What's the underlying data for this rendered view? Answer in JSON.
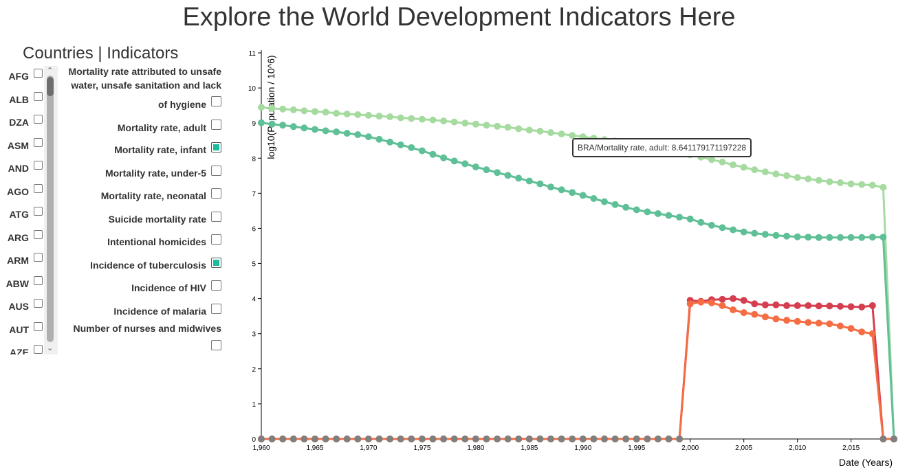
{
  "page_title": "Explore the World Development Indicators Here",
  "panel_header": "Countries | Indicators",
  "countries": [
    {
      "code": "AFG",
      "checked": false
    },
    {
      "code": "ALB",
      "checked": false
    },
    {
      "code": "DZA",
      "checked": false
    },
    {
      "code": "ASM",
      "checked": false
    },
    {
      "code": "AND",
      "checked": false
    },
    {
      "code": "AGO",
      "checked": false
    },
    {
      "code": "ATG",
      "checked": false
    },
    {
      "code": "ARG",
      "checked": false
    },
    {
      "code": "ARM",
      "checked": false
    },
    {
      "code": "ABW",
      "checked": false
    },
    {
      "code": "AUS",
      "checked": false
    },
    {
      "code": "AUT",
      "checked": false
    },
    {
      "code": "AZE",
      "checked": false
    }
  ],
  "scrollbar": {
    "up": "⌃",
    "down": "⌄"
  },
  "indicators": [
    {
      "label_lines": [
        "Mortality rate attributed to unsafe",
        "water, unsafe sanitation and lack",
        "of hygiene"
      ],
      "checked": false
    },
    {
      "label_lines": [
        "Mortality rate, adult"
      ],
      "checked": false
    },
    {
      "label_lines": [
        "Mortality rate, infant"
      ],
      "checked": true
    },
    {
      "label_lines": [
        "Mortality rate, under-5"
      ],
      "checked": false
    },
    {
      "label_lines": [
        "Mortality rate, neonatal"
      ],
      "checked": false
    },
    {
      "label_lines": [
        "Suicide mortality rate"
      ],
      "checked": false
    },
    {
      "label_lines": [
        "Intentional homicides"
      ],
      "checked": false
    },
    {
      "label_lines": [
        "Incidence of tuberculosis"
      ],
      "checked": true
    },
    {
      "label_lines": [
        "Incidence of HIV"
      ],
      "checked": false
    },
    {
      "label_lines": [
        "Incidence of malaria"
      ],
      "checked": false
    },
    {
      "label_lines": [
        "Number of nurses and midwives"
      ],
      "checked": false
    }
  ],
  "tooltip": "BRA/Mortality rate, adult: 8.641179171197228",
  "chart_data": {
    "type": "line",
    "xlabel": "Date (Years)",
    "ylabel": "log10(Population / 10^6)",
    "xlim": [
      1960,
      2019
    ],
    "ylim": [
      0,
      11
    ],
    "x_ticks": [
      1960,
      1965,
      1970,
      1975,
      1980,
      1985,
      1990,
      1995,
      2000,
      2005,
      2010,
      2015
    ],
    "x_tick_labels": [
      "1,960",
      "1,965",
      "1,970",
      "1,975",
      "1,980",
      "1,985",
      "1,990",
      "1,995",
      "2,000",
      "2,005",
      "2,010",
      "2,015"
    ],
    "y_ticks": [
      0,
      1,
      2,
      3,
      4,
      5,
      6,
      7,
      8,
      9,
      10,
      11
    ],
    "y_tick_labels": [
      "0",
      "1",
      "2",
      "3",
      "4",
      "5",
      "6",
      "7",
      "8",
      "9",
      "10",
      "11"
    ],
    "grid": false,
    "legend": "none",
    "x_start": 1960,
    "x_end": 2019,
    "series": [
      {
        "color": "#a6dba0",
        "points": [
          [
            1960,
            9.45
          ],
          [
            1961,
            9.42
          ],
          [
            1962,
            9.4
          ],
          [
            1963,
            9.38
          ],
          [
            1964,
            9.35
          ],
          [
            1965,
            9.33
          ],
          [
            1966,
            9.31
          ],
          [
            1967,
            9.28
          ],
          [
            1968,
            9.26
          ],
          [
            1969,
            9.24
          ],
          [
            1970,
            9.22
          ],
          [
            1971,
            9.2
          ],
          [
            1972,
            9.18
          ],
          [
            1973,
            9.15
          ],
          [
            1974,
            9.13
          ],
          [
            1975,
            9.11
          ],
          [
            1976,
            9.09
          ],
          [
            1977,
            9.06
          ],
          [
            1978,
            9.03
          ],
          [
            1979,
            9.0
          ],
          [
            1980,
            8.97
          ],
          [
            1981,
            8.94
          ],
          [
            1982,
            8.91
          ],
          [
            1983,
            8.88
          ],
          [
            1984,
            8.84
          ],
          [
            1985,
            8.8
          ],
          [
            1986,
            8.77
          ],
          [
            1987,
            8.73
          ],
          [
            1988,
            8.69
          ],
          [
            1989,
            8.65
          ],
          [
            1990,
            8.61
          ],
          [
            1991,
            8.57
          ],
          [
            1992,
            8.53
          ],
          [
            1993,
            8.49
          ],
          [
            1994,
            8.44
          ],
          [
            1995,
            8.39
          ],
          [
            1996,
            8.34
          ],
          [
            1997,
            8.29
          ],
          [
            1998,
            8.23
          ],
          [
            1999,
            8.17
          ],
          [
            2000,
            8.1
          ],
          [
            2001,
            8.03
          ],
          [
            2002,
            7.96
          ],
          [
            2003,
            7.89
          ],
          [
            2004,
            7.81
          ],
          [
            2005,
            7.74
          ],
          [
            2006,
            7.67
          ],
          [
            2007,
            7.61
          ],
          [
            2008,
            7.55
          ],
          [
            2009,
            7.5
          ],
          [
            2010,
            7.45
          ],
          [
            2011,
            7.41
          ],
          [
            2012,
            7.37
          ],
          [
            2013,
            7.33
          ],
          [
            2014,
            7.3
          ],
          [
            2015,
            7.27
          ],
          [
            2016,
            7.25
          ],
          [
            2017,
            7.23
          ],
          [
            2018,
            7.17
          ],
          [
            2019,
            0
          ]
        ]
      },
      {
        "color": "#5fbf97",
        "points": [
          [
            1960,
            9.01
          ],
          [
            1961,
            8.97
          ],
          [
            1962,
            8.94
          ],
          [
            1963,
            8.9
          ],
          [
            1964,
            8.86
          ],
          [
            1965,
            8.82
          ],
          [
            1966,
            8.78
          ],
          [
            1967,
            8.75
          ],
          [
            1968,
            8.71
          ],
          [
            1969,
            8.67
          ],
          [
            1970,
            8.61
          ],
          [
            1971,
            8.54
          ],
          [
            1972,
            8.46
          ],
          [
            1973,
            8.38
          ],
          [
            1974,
            8.3
          ],
          [
            1975,
            8.21
          ],
          [
            1976,
            8.11
          ],
          [
            1977,
            8.01
          ],
          [
            1978,
            7.92
          ],
          [
            1979,
            7.84
          ],
          [
            1980,
            7.75
          ],
          [
            1981,
            7.67
          ],
          [
            1982,
            7.59
          ],
          [
            1983,
            7.51
          ],
          [
            1984,
            7.43
          ],
          [
            1985,
            7.35
          ],
          [
            1986,
            7.27
          ],
          [
            1987,
            7.18
          ],
          [
            1988,
            7.1
          ],
          [
            1989,
            7.02
          ],
          [
            1990,
            6.94
          ],
          [
            1991,
            6.85
          ],
          [
            1992,
            6.76
          ],
          [
            1993,
            6.68
          ],
          [
            1994,
            6.6
          ],
          [
            1995,
            6.53
          ],
          [
            1996,
            6.47
          ],
          [
            1997,
            6.42
          ],
          [
            1998,
            6.37
          ],
          [
            1999,
            6.32
          ],
          [
            2000,
            6.27
          ],
          [
            2001,
            6.17
          ],
          [
            2002,
            6.09
          ],
          [
            2003,
            6.02
          ],
          [
            2004,
            5.96
          ],
          [
            2005,
            5.9
          ],
          [
            2006,
            5.86
          ],
          [
            2007,
            5.83
          ],
          [
            2008,
            5.8
          ],
          [
            2009,
            5.78
          ],
          [
            2010,
            5.76
          ],
          [
            2011,
            5.75
          ],
          [
            2012,
            5.74
          ],
          [
            2013,
            5.74
          ],
          [
            2014,
            5.74
          ],
          [
            2015,
            5.74
          ],
          [
            2016,
            5.74
          ],
          [
            2017,
            5.75
          ],
          [
            2018,
            5.75
          ],
          [
            2019,
            0
          ]
        ]
      },
      {
        "color": "#d53e4f",
        "points": [
          [
            1960,
            0
          ],
          [
            1961,
            0
          ],
          [
            1962,
            0
          ],
          [
            1963,
            0
          ],
          [
            1964,
            0
          ],
          [
            1965,
            0
          ],
          [
            1966,
            0
          ],
          [
            1967,
            0
          ],
          [
            1968,
            0
          ],
          [
            1969,
            0
          ],
          [
            1970,
            0
          ],
          [
            1971,
            0
          ],
          [
            1972,
            0
          ],
          [
            1973,
            0
          ],
          [
            1974,
            0
          ],
          [
            1975,
            0
          ],
          [
            1976,
            0
          ],
          [
            1977,
            0
          ],
          [
            1978,
            0
          ],
          [
            1979,
            0
          ],
          [
            1980,
            0
          ],
          [
            1981,
            0
          ],
          [
            1982,
            0
          ],
          [
            1983,
            0
          ],
          [
            1984,
            0
          ],
          [
            1985,
            0
          ],
          [
            1986,
            0
          ],
          [
            1987,
            0
          ],
          [
            1988,
            0
          ],
          [
            1989,
            0
          ],
          [
            1990,
            0
          ],
          [
            1991,
            0
          ],
          [
            1992,
            0
          ],
          [
            1993,
            0
          ],
          [
            1994,
            0
          ],
          [
            1995,
            0
          ],
          [
            1996,
            0
          ],
          [
            1997,
            0
          ],
          [
            1998,
            0
          ],
          [
            1999,
            0
          ],
          [
            2000,
            3.95
          ],
          [
            2001,
            3.92
          ],
          [
            2002,
            3.97
          ],
          [
            2003,
            3.98
          ],
          [
            2004,
            4.0
          ],
          [
            2005,
            3.95
          ],
          [
            2006,
            3.85
          ],
          [
            2007,
            3.82
          ],
          [
            2008,
            3.82
          ],
          [
            2009,
            3.8
          ],
          [
            2010,
            3.8
          ],
          [
            2011,
            3.8
          ],
          [
            2012,
            3.79
          ],
          [
            2013,
            3.79
          ],
          [
            2014,
            3.78
          ],
          [
            2015,
            3.77
          ],
          [
            2016,
            3.76
          ],
          [
            2017,
            3.8
          ],
          [
            2018,
            0
          ],
          [
            2019,
            0
          ]
        ]
      },
      {
        "color": "#f46d43",
        "points": [
          [
            1960,
            0
          ],
          [
            1961,
            0
          ],
          [
            1962,
            0
          ],
          [
            1963,
            0
          ],
          [
            1964,
            0
          ],
          [
            1965,
            0
          ],
          [
            1966,
            0
          ],
          [
            1967,
            0
          ],
          [
            1968,
            0
          ],
          [
            1969,
            0
          ],
          [
            1970,
            0
          ],
          [
            1971,
            0
          ],
          [
            1972,
            0
          ],
          [
            1973,
            0
          ],
          [
            1974,
            0
          ],
          [
            1975,
            0
          ],
          [
            1976,
            0
          ],
          [
            1977,
            0
          ],
          [
            1978,
            0
          ],
          [
            1979,
            0
          ],
          [
            1980,
            0
          ],
          [
            1981,
            0
          ],
          [
            1982,
            0
          ],
          [
            1983,
            0
          ],
          [
            1984,
            0
          ],
          [
            1985,
            0
          ],
          [
            1986,
            0
          ],
          [
            1987,
            0
          ],
          [
            1988,
            0
          ],
          [
            1989,
            0
          ],
          [
            1990,
            0
          ],
          [
            1991,
            0
          ],
          [
            1992,
            0
          ],
          [
            1993,
            0
          ],
          [
            1994,
            0
          ],
          [
            1995,
            0
          ],
          [
            1996,
            0
          ],
          [
            1997,
            0
          ],
          [
            1998,
            0
          ],
          [
            1999,
            0
          ],
          [
            2000,
            3.85
          ],
          [
            2001,
            3.9
          ],
          [
            2002,
            3.88
          ],
          [
            2003,
            3.8
          ],
          [
            2004,
            3.68
          ],
          [
            2005,
            3.6
          ],
          [
            2006,
            3.55
          ],
          [
            2007,
            3.48
          ],
          [
            2008,
            3.42
          ],
          [
            2009,
            3.38
          ],
          [
            2010,
            3.35
          ],
          [
            2011,
            3.32
          ],
          [
            2012,
            3.3
          ],
          [
            2013,
            3.28
          ],
          [
            2014,
            3.22
          ],
          [
            2015,
            3.15
          ],
          [
            2016,
            3.05
          ],
          [
            2017,
            3.0
          ],
          [
            2018,
            0
          ],
          [
            2019,
            0
          ]
        ]
      }
    ]
  }
}
